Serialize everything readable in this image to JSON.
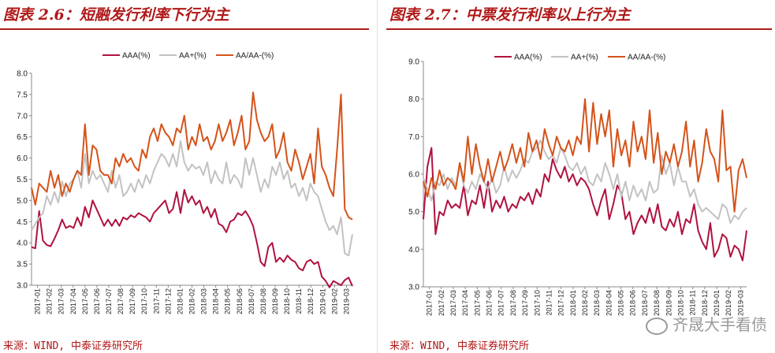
{
  "left": {
    "title": "图表 2.6：短融发行利率下行为主",
    "source": "来源：WIND, 中泰证券研究所",
    "chart_data": {
      "type": "line",
      "ylim": [
        3.0,
        8.0
      ],
      "yticks": [
        "8.0",
        "7.5",
        "7.0",
        "6.5",
        "6.0",
        "5.5",
        "5.0",
        "4.5",
        "4.0",
        "3.5",
        "3.0"
      ],
      "xticks": [
        "2017-01",
        "2017-02",
        "2017-03",
        "2017-04",
        "2017-05",
        "2017-06",
        "2017-07",
        "2017-08",
        "2017-09",
        "2017-10",
        "2017-11",
        "2017-12",
        "2018-01",
        "2018-02",
        "2018-03",
        "2018-04",
        "2018-05",
        "2018-06",
        "2018-07",
        "2018-08",
        "2018-09",
        "2018-10",
        "2018-11",
        "2018-12",
        "2019-01",
        "2019-02",
        "2019-03"
      ],
      "legend": [
        "AAA(%)",
        "AA+(%)",
        "AA/AA-(%)"
      ],
      "series": [
        {
          "name": "AAA(%)",
          "color": "#b0123e",
          "values": [
            3.9,
            3.87,
            4.75,
            4.05,
            3.95,
            3.92,
            4.1,
            4.3,
            4.55,
            4.35,
            4.4,
            4.35,
            4.6,
            4.4,
            4.85,
            4.6,
            5.0,
            4.8,
            4.6,
            4.4,
            4.55,
            4.4,
            4.55,
            4.4,
            4.6,
            4.55,
            4.65,
            4.6,
            4.7,
            4.65,
            4.6,
            4.5,
            4.7,
            4.8,
            4.9,
            5.0,
            4.7,
            4.8,
            5.2,
            4.7,
            5.25,
            4.95,
            5.1,
            4.9,
            5.0,
            4.7,
            4.85,
            4.6,
            4.8,
            4.45,
            4.4,
            4.25,
            4.5,
            4.55,
            4.7,
            4.65,
            4.75,
            4.6,
            4.4,
            4.0,
            3.55,
            3.45,
            3.9,
            4.0,
            3.55,
            3.65,
            3.55,
            3.7,
            3.6,
            3.55,
            3.4,
            3.35,
            3.55,
            3.6,
            3.5,
            3.55,
            3.2,
            3.1,
            2.95,
            3.1,
            3.05,
            3.0,
            3.12,
            3.18,
            2.98
          ]
        },
        {
          "name": "AA+(%)",
          "color": "#c2c2c2",
          "values": [
            4.3,
            4.45,
            4.6,
            4.7,
            5.1,
            4.9,
            5.2,
            4.95,
            5.45,
            5.1,
            5.4,
            5.5,
            5.7,
            5.3,
            6.1,
            5.4,
            5.7,
            5.5,
            5.6,
            5.4,
            5.2,
            5.7,
            5.3,
            5.6,
            5.1,
            5.2,
            5.4,
            5.2,
            5.5,
            5.3,
            5.6,
            5.4,
            5.7,
            5.9,
            6.1,
            6.0,
            5.8,
            6.1,
            5.8,
            6.4,
            5.9,
            5.7,
            5.85,
            5.75,
            5.8,
            5.6,
            5.9,
            5.4,
            5.7,
            5.5,
            5.4,
            5.9,
            5.4,
            5.6,
            5.5,
            5.3,
            6.0,
            5.6,
            6.0,
            5.6,
            5.2,
            5.5,
            5.3,
            5.8,
            5.6,
            5.9,
            5.5,
            5.7,
            5.3,
            5.4,
            5.1,
            5.3,
            5.0,
            5.4,
            5.2,
            5.1,
            4.8,
            4.5,
            4.3,
            4.4,
            4.2,
            4.6,
            3.75,
            3.7,
            4.2
          ]
        },
        {
          "name": "AA/AA-(%)",
          "color": "#d4531a",
          "values": [
            5.3,
            4.9,
            5.4,
            5.3,
            5.2,
            5.7,
            5.3,
            5.6,
            5.1,
            5.4,
            5.2,
            5.5,
            5.7,
            5.6,
            6.8,
            5.6,
            6.3,
            6.2,
            5.7,
            5.6,
            5.6,
            5.4,
            6.0,
            5.8,
            6.1,
            5.9,
            6.0,
            5.8,
            5.7,
            6.2,
            6.0,
            6.5,
            6.7,
            6.4,
            6.8,
            6.6,
            6.5,
            6.3,
            6.7,
            6.6,
            7.0,
            6.2,
            6.5,
            6.3,
            6.8,
            6.4,
            6.5,
            6.2,
            6.4,
            6.8,
            6.4,
            6.6,
            6.9,
            6.3,
            6.6,
            7.0,
            6.2,
            6.4,
            7.55,
            6.9,
            6.6,
            6.4,
            6.5,
            6.8,
            6.0,
            6.2,
            6.6,
            5.9,
            5.7,
            6.2,
            5.9,
            5.5,
            5.8,
            6.1,
            5.4,
            6.7,
            5.8,
            5.6,
            5.3,
            5.1,
            6.2,
            7.5,
            4.8,
            4.6,
            4.55
          ]
        }
      ]
    }
  },
  "right": {
    "title": "图表 2.7：中票发行利率以上行为主",
    "source": "来源：WIND, 中泰证券研究所",
    "watermark": "齐晟大手看债",
    "chart_data": {
      "type": "line",
      "ylim": [
        3.0,
        9.0
      ],
      "yticks": [
        "9.0",
        "8.0",
        "7.0",
        "6.0",
        "5.0",
        "4.0",
        "3.0"
      ],
      "xticks": [
        "2017-01",
        "2017-02",
        "2017-03",
        "2017-04",
        "2017-05",
        "2017-06",
        "2017-07",
        "2017-08",
        "2017-09",
        "2017-10",
        "2017-11",
        "2017-12",
        "2018-01",
        "2018-02",
        "2018-03",
        "2018-04",
        "2018-05",
        "2018-06",
        "2018-07",
        "2018-08",
        "2018-09",
        "2018-10",
        "2018-11",
        "2018-12",
        "2019-01",
        "2019-02",
        "2019-03"
      ],
      "legend": [
        "AAA(%)",
        "AA+(%)",
        "AA/AA-(%)"
      ],
      "series": [
        {
          "name": "AAA(%)",
          "color": "#b0123e",
          "values": [
            4.8,
            6.2,
            6.7,
            4.4,
            5.0,
            4.9,
            5.3,
            5.1,
            5.2,
            5.1,
            5.7,
            4.9,
            5.3,
            5.2,
            5.7,
            5.1,
            5.8,
            5.0,
            5.3,
            5.1,
            5.4,
            5.0,
            5.2,
            5.1,
            5.4,
            5.3,
            5.5,
            5.2,
            5.6,
            5.4,
            6.0,
            5.8,
            6.4,
            6.1,
            5.9,
            6.2,
            5.8,
            6.0,
            5.7,
            5.9,
            5.8,
            5.6,
            5.2,
            4.9,
            5.3,
            5.6,
            4.8,
            5.2,
            5.7,
            5.5,
            4.8,
            5.0,
            4.4,
            4.7,
            4.9,
            4.7,
            5.1,
            4.7,
            5.2,
            4.6,
            4.5,
            4.8,
            4.6,
            5.0,
            4.4,
            4.8,
            4.7,
            5.2,
            4.5,
            4.2,
            4.0,
            4.7,
            3.8,
            4.0,
            4.4,
            4.3,
            3.8,
            4.1,
            4.0,
            3.7,
            4.5
          ]
        },
        {
          "name": "AA+(%)",
          "color": "#c2c2c2",
          "values": [
            5.9,
            5.6,
            5.3,
            5.8,
            5.7,
            6.0,
            5.6,
            5.9,
            5.7,
            6.2,
            5.7,
            5.5,
            5.8,
            5.6,
            6.0,
            5.8,
            5.6,
            5.9,
            5.5,
            5.7,
            6.2,
            5.8,
            6.1,
            5.9,
            6.1,
            6.4,
            6.3,
            6.6,
            6.7,
            6.9,
            6.6,
            6.4,
            6.5,
            6.3,
            6.7,
            6.5,
            6.2,
            6.1,
            6.3,
            6.0,
            6.2,
            5.8,
            5.7,
            6.0,
            5.8,
            6.3,
            6.0,
            5.6,
            6.0,
            5.4,
            5.8,
            5.3,
            5.7,
            5.4,
            5.6,
            5.3,
            5.8,
            5.5,
            5.6,
            6.5,
            6.0,
            6.3,
            5.7,
            6.2,
            5.8,
            5.8,
            5.4,
            5.6,
            5.2,
            5.0,
            5.1,
            5.0,
            4.9,
            4.8,
            5.2,
            5.1,
            4.7,
            4.9,
            4.8,
            5.0,
            5.1
          ]
        },
        {
          "name": "AA/AA-(%)",
          "color": "#d4531a",
          "values": [
            5.8,
            5.4,
            5.9,
            5.6,
            6.1,
            5.7,
            5.9,
            5.8,
            5.6,
            6.3,
            5.8,
            7.0,
            6.0,
            6.8,
            6.2,
            5.8,
            6.4,
            5.8,
            6.2,
            6.6,
            6.1,
            6.4,
            6.8,
            6.3,
            6.7,
            6.2,
            7.1,
            6.6,
            6.9,
            6.4,
            7.2,
            6.8,
            6.5,
            7.0,
            6.7,
            6.6,
            6.9,
            6.5,
            7.0,
            6.8,
            8.0,
            6.6,
            7.9,
            6.8,
            7.6,
            7.0,
            7.7,
            6.2,
            7.2,
            6.5,
            6.9,
            6.2,
            7.4,
            6.6,
            7.0,
            6.4,
            7.7,
            6.3,
            7.1,
            6.0,
            6.6,
            6.3,
            6.8,
            6.2,
            6.6,
            7.4,
            6.2,
            6.9,
            5.8,
            6.3,
            7.2,
            6.6,
            6.4,
            5.8,
            7.7,
            6.1,
            6.2,
            5.0,
            6.1,
            6.4,
            5.9
          ]
        }
      ]
    }
  }
}
